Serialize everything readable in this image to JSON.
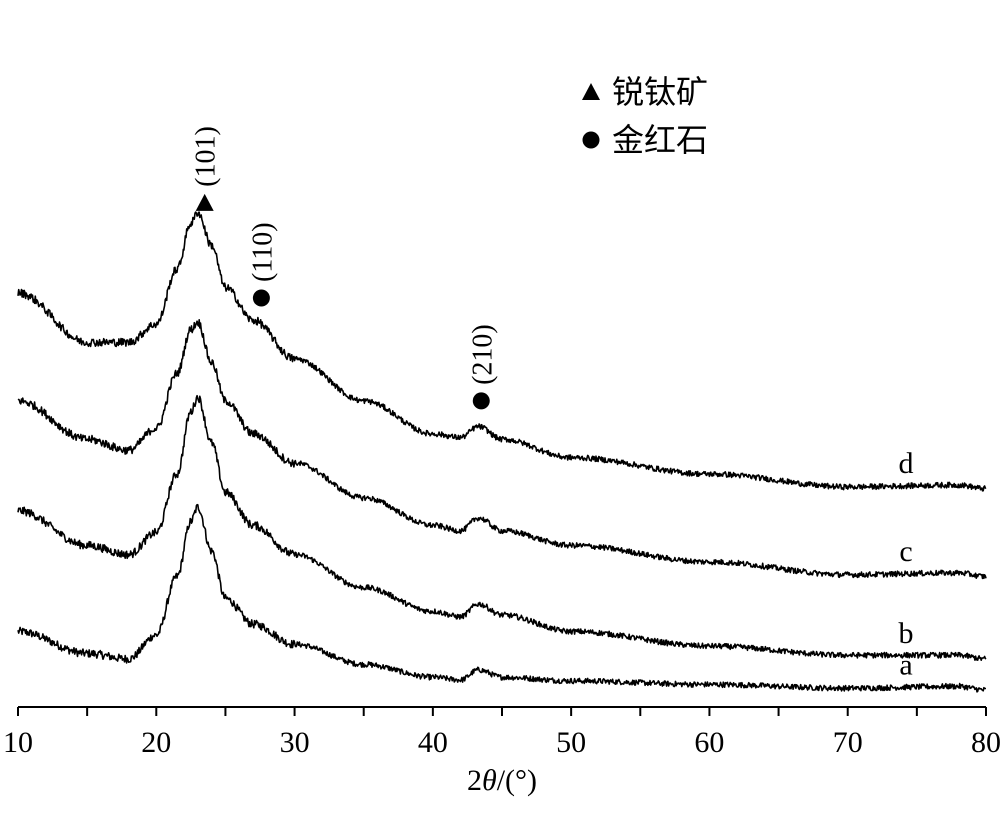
{
  "chart_data": {
    "type": "line",
    "xlabel_parts": {
      "prefix": "2",
      "symbol": "θ",
      "suffix": "/(°)"
    },
    "xlim": [
      10,
      80
    ],
    "x_ticks": [
      10,
      20,
      30,
      40,
      50,
      60,
      70,
      80
    ],
    "y_axis_visible": false,
    "grid": false,
    "legend_position": "top-center",
    "legend": [
      {
        "marker": "triangle",
        "label": "锐钛矿"
      },
      {
        "marker": "circle",
        "label": "金红石"
      }
    ],
    "annotations": [
      {
        "label": "(101)",
        "marker": "triangle",
        "x": 23.5
      },
      {
        "label": "(110)",
        "marker": "circle",
        "x": 27.6
      },
      {
        "label": "(210)",
        "marker": "circle",
        "x": 43.5
      }
    ],
    "series": [
      {
        "name": "a",
        "points": [
          [
            10,
            0.32
          ],
          [
            15,
            0.2
          ],
          [
            18,
            0.17
          ],
          [
            20,
            0.3
          ],
          [
            21.5,
            0.62
          ],
          [
            22.5,
            0.92
          ],
          [
            23,
            1.0
          ],
          [
            24,
            0.76
          ],
          [
            25,
            0.5
          ],
          [
            27,
            0.36
          ],
          [
            30,
            0.25
          ],
          [
            35,
            0.14
          ],
          [
            40,
            0.07
          ],
          [
            42,
            0.055
          ],
          [
            43.3,
            0.11
          ],
          [
            45,
            0.07
          ],
          [
            50,
            0.05
          ],
          [
            60,
            0.03
          ],
          [
            70,
            0.01
          ],
          [
            78,
            0.02
          ],
          [
            80,
            0.0
          ]
        ]
      },
      {
        "name": "b",
        "points": [
          [
            10,
            0.98
          ],
          [
            15,
            0.79
          ],
          [
            18,
            0.74
          ],
          [
            20,
            0.86
          ],
          [
            21.5,
            1.18
          ],
          [
            22.5,
            1.52
          ],
          [
            23,
            1.6
          ],
          [
            24,
            1.35
          ],
          [
            25,
            1.08
          ],
          [
            27,
            0.9
          ],
          [
            30,
            0.74
          ],
          [
            35,
            0.56
          ],
          [
            40,
            0.43
          ],
          [
            42,
            0.4
          ],
          [
            43.3,
            0.47
          ],
          [
            45,
            0.41
          ],
          [
            50,
            0.32
          ],
          [
            60,
            0.24
          ],
          [
            70,
            0.19
          ],
          [
            78,
            0.19
          ],
          [
            80,
            0.17
          ]
        ]
      },
      {
        "name": "c",
        "points": [
          [
            10,
            1.58
          ],
          [
            15,
            1.37
          ],
          [
            18,
            1.31
          ],
          [
            20,
            1.43
          ],
          [
            21.5,
            1.73
          ],
          [
            22.5,
            1.97
          ],
          [
            23,
            2.01
          ],
          [
            24,
            1.79
          ],
          [
            25,
            1.58
          ],
          [
            27,
            1.4
          ],
          [
            30,
            1.24
          ],
          [
            35,
            1.05
          ],
          [
            40,
            0.9
          ],
          [
            42,
            0.87
          ],
          [
            43.3,
            0.94
          ],
          [
            45,
            0.87
          ],
          [
            50,
            0.79
          ],
          [
            60,
            0.7
          ],
          [
            70,
            0.63
          ],
          [
            78,
            0.64
          ],
          [
            80,
            0.62
          ]
        ]
      },
      {
        "name": "d",
        "points": [
          [
            10,
            2.17
          ],
          [
            15,
            1.9
          ],
          [
            18,
            1.9
          ],
          [
            20,
            2.0
          ],
          [
            21.5,
            2.3
          ],
          [
            22.5,
            2.55
          ],
          [
            23,
            2.61
          ],
          [
            24,
            2.43
          ],
          [
            25,
            2.2
          ],
          [
            27,
            2.02
          ],
          [
            30,
            1.81
          ],
          [
            35,
            1.58
          ],
          [
            40,
            1.4
          ],
          [
            42,
            1.38
          ],
          [
            43.3,
            1.44
          ],
          [
            45,
            1.37
          ],
          [
            50,
            1.27
          ],
          [
            60,
            1.18
          ],
          [
            70,
            1.11
          ],
          [
            78,
            1.12
          ],
          [
            80,
            1.1
          ]
        ]
      }
    ]
  }
}
